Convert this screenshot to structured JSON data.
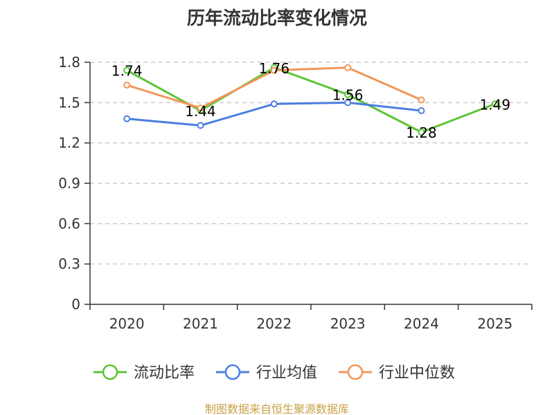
{
  "chart_data": {
    "type": "line",
    "title": "历年流动比率变化情况",
    "categories": [
      "2020",
      "2021",
      "2022",
      "2023",
      "2024",
      "2025"
    ],
    "ylim": [
      0,
      1.8
    ],
    "yticks": [
      "0",
      "0.3",
      "0.6",
      "0.9",
      "1.2",
      "1.5",
      "1.8"
    ],
    "ytick_values": [
      0,
      0.3,
      0.6,
      0.9,
      1.2,
      1.5,
      1.8
    ],
    "grid": true,
    "legend_position": "bottom",
    "series": [
      {
        "name": "流动比率",
        "color": "#5cc435",
        "values": [
          1.74,
          1.44,
          1.76,
          1.56,
          1.28,
          1.49
        ],
        "labels": [
          "1.74",
          "1.44",
          "1.76",
          "1.56",
          "1.28",
          "1.49"
        ]
      },
      {
        "name": "行业均值",
        "color": "#4a7fe0",
        "values": [
          1.38,
          1.33,
          1.49,
          1.5,
          1.44,
          null
        ]
      },
      {
        "name": "行业中位数",
        "color": "#f39659",
        "values": [
          1.63,
          1.46,
          1.74,
          1.76,
          1.52,
          null
        ]
      }
    ],
    "source": "制图数据来自恒生聚源数据库"
  }
}
